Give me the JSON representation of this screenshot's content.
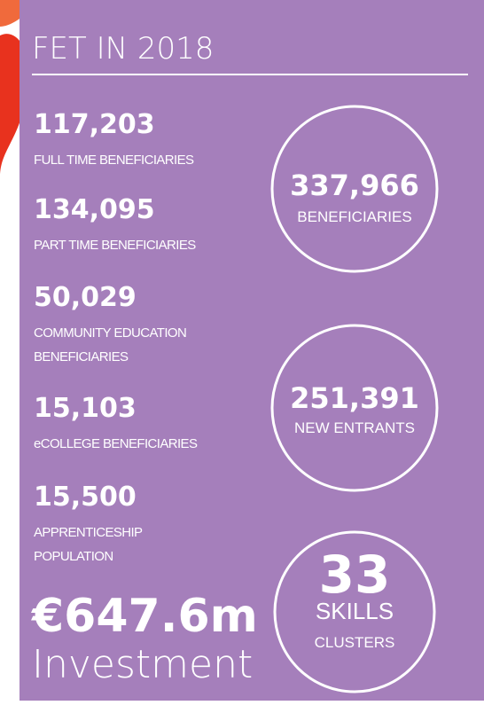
{
  "header": {
    "title": "FET IN 2018"
  },
  "stats": [
    {
      "number": "117,203",
      "label": [
        "FULL TIME BENEFICIARIES"
      ]
    },
    {
      "number": "134,095",
      "label": [
        "PART TIME BENEFICIARIES"
      ]
    },
    {
      "number": "50,029",
      "label": [
        "COMMUNITY EDUCATION",
        "BENEFICIARIES"
      ]
    },
    {
      "number": "15,103",
      "label": [
        "eCOLLEGE BENEFICIARIES"
      ]
    },
    {
      "number": "15,500",
      "label": [
        "APPRENTICESHIP",
        "POPULATION"
      ]
    }
  ],
  "investment": {
    "amount": "€647.6m",
    "label": "Investment"
  },
  "circles": [
    {
      "number": "337,966",
      "label": [
        "BENEFICIARIES"
      ]
    },
    {
      "number": "251,391",
      "label": [
        "NEW ENTRANTS"
      ]
    },
    {
      "number": "33",
      "label": [
        "SKILLS",
        "CLUSTERS"
      ]
    }
  ]
}
